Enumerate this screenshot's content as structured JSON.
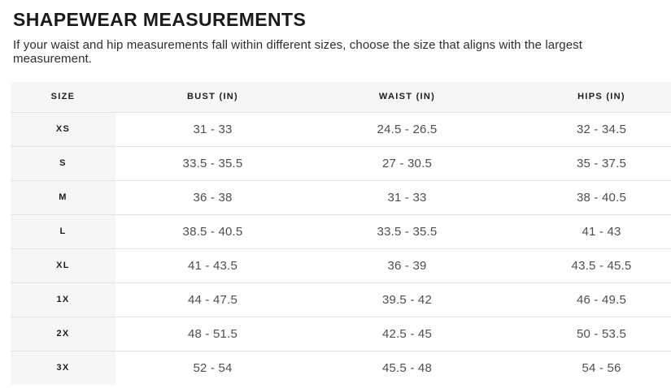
{
  "page": {
    "title": "SHAPEWEAR MEASUREMENTS",
    "subtitle": "If your waist and hip measurements fall within different sizes, choose the size that aligns with the largest measurement."
  },
  "table": {
    "columns": [
      "SIZE",
      "BUST (IN)",
      "WAIST (IN)",
      "HIPS (IN)"
    ],
    "rows": [
      {
        "size": "XS",
        "bust": "31 - 33",
        "waist": "24.5 - 26.5",
        "hips": "32 - 34.5"
      },
      {
        "size": "S",
        "bust": "33.5 - 35.5",
        "waist": "27 - 30.5",
        "hips": "35 - 37.5"
      },
      {
        "size": "M",
        "bust": "36 - 38",
        "waist": "31 - 33",
        "hips": "38 - 40.5"
      },
      {
        "size": "L",
        "bust": "38.5 - 40.5",
        "waist": "33.5 - 35.5",
        "hips": "41 - 43"
      },
      {
        "size": "XL",
        "bust": "41 - 43.5",
        "waist": "36 - 39",
        "hips": "43.5 - 45.5"
      },
      {
        "size": "1X",
        "bust": "44 - 47.5",
        "waist": "39.5 - 42",
        "hips": "46 - 49.5"
      },
      {
        "size": "2X",
        "bust": "48 - 51.5",
        "waist": "42.5 - 45",
        "hips": "50 - 53.5"
      },
      {
        "size": "3X",
        "bust": "52 - 54",
        "waist": "45.5 - 48",
        "hips": "54 - 56"
      }
    ]
  },
  "colors": {
    "header_bg": "#f6f6f6",
    "row_divider": "#e3e3e3",
    "title_text": "#1b1b1b",
    "body_text": "#4e4e4e"
  }
}
